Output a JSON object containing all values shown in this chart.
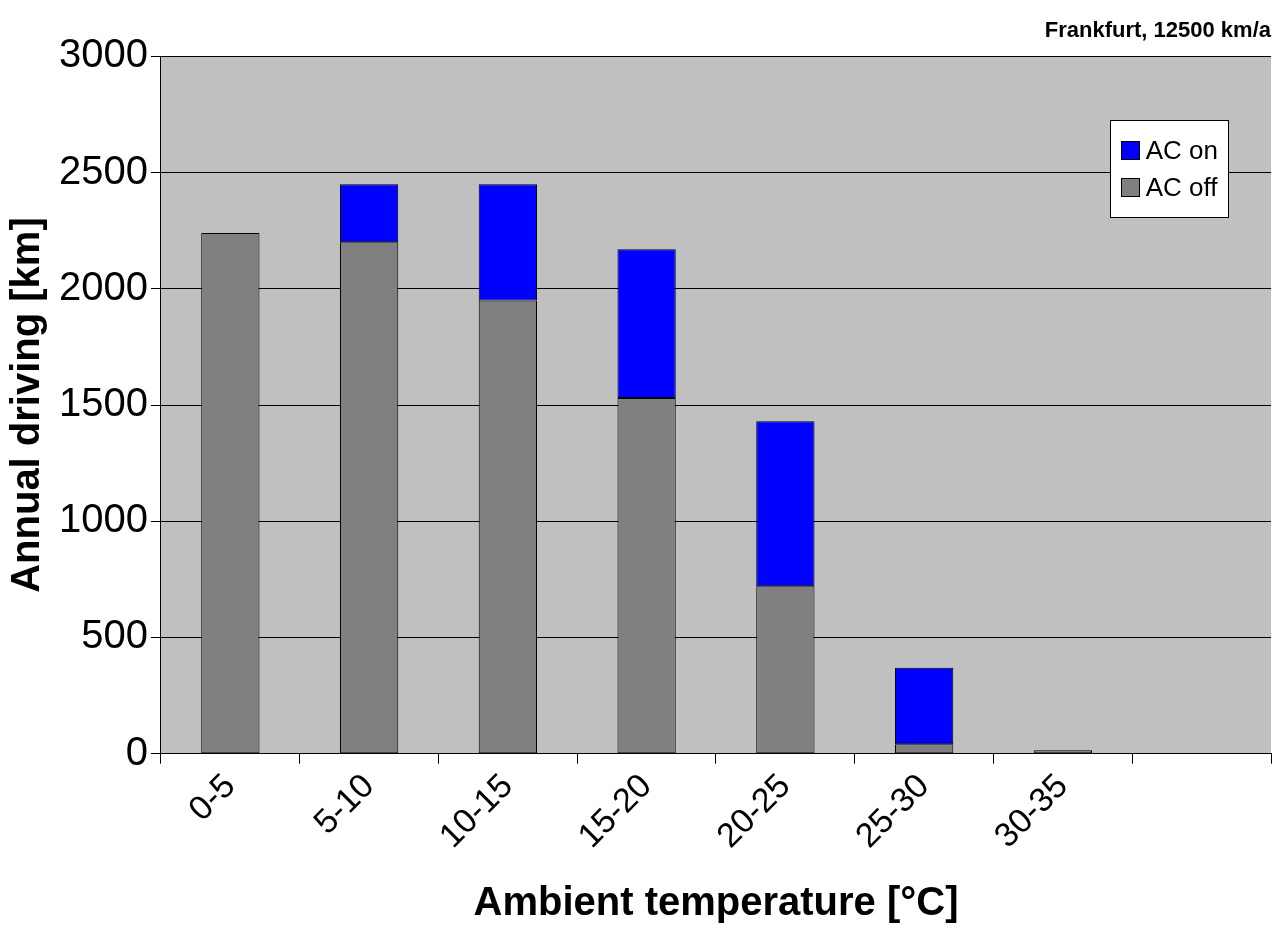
{
  "chart_data": {
    "type": "bar",
    "title": "Frankfurt, 12500 km/a",
    "xlabel": "Ambient temperature [°C]",
    "ylabel": "Annual driving [km]",
    "categories": [
      "0-5",
      "5-10",
      "10-15",
      "15-20",
      "20-25",
      "25-30",
      "30-35",
      null
    ],
    "stacked": true,
    "series": [
      {
        "name": "AC off",
        "color": "#808080",
        "values": [
          2240,
          2200,
          1950,
          1530,
          720,
          40,
          15,
          null
        ]
      },
      {
        "name": "AC on",
        "color": "#0000ff",
        "values": [
          null,
          250,
          500,
          640,
          710,
          330,
          null,
          null
        ]
      }
    ],
    "ylim": [
      0,
      3000
    ],
    "yticks": [
      0,
      500,
      1000,
      1500,
      2000,
      2500,
      3000
    ],
    "grid": "y",
    "legend": "top right"
  }
}
